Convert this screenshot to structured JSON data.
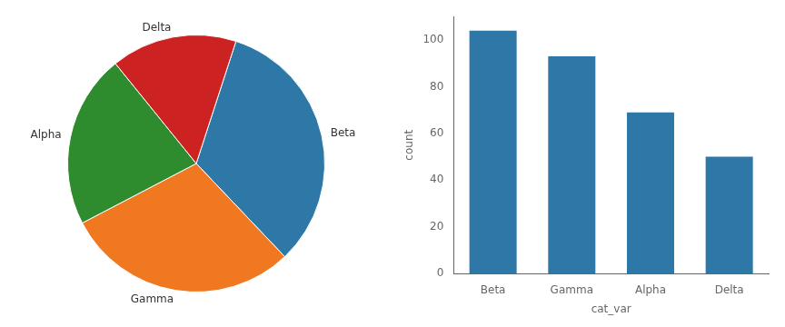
{
  "chart_data": [
    {
      "type": "pie",
      "categories": [
        "Beta",
        "Gamma",
        "Alpha",
        "Delta"
      ],
      "values": [
        104,
        93,
        69,
        50
      ],
      "colors": [
        "#2e78a8",
        "#f07820",
        "#2e8b2e",
        "#cc2222"
      ]
    },
    {
      "type": "bar",
      "categories": [
        "Beta",
        "Gamma",
        "Alpha",
        "Delta"
      ],
      "values": [
        104,
        93,
        69,
        50
      ],
      "color": "#2e78a8",
      "xlabel": "cat_var",
      "ylabel": "count",
      "ylim": [
        0,
        110
      ],
      "yticks": [
        0,
        20,
        40,
        60,
        80,
        100
      ],
      "grid": false
    }
  ]
}
